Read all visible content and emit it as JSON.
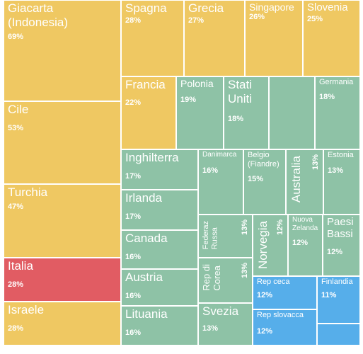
{
  "colors": {
    "yellow": "#efc862",
    "green": "#8ec2a6",
    "red": "#e15c63",
    "blue": "#56aeea"
  },
  "chart_data": {
    "type": "treemap",
    "unit": "%",
    "items": [
      {
        "label": "Giacarta\n(Indonesia)",
        "value": 69,
        "group": "yellow"
      },
      {
        "label": "Cile",
        "value": 53,
        "group": "yellow"
      },
      {
        "label": "Turchia",
        "value": 47,
        "group": "yellow"
      },
      {
        "label": "Italia",
        "value": 28,
        "group": "red"
      },
      {
        "label": "Israele",
        "value": 28,
        "group": "yellow"
      },
      {
        "label": "Spagna",
        "value": 28,
        "group": "yellow"
      },
      {
        "label": "Grecia",
        "value": 27,
        "group": "yellow"
      },
      {
        "label": "Singapore",
        "value": 26,
        "group": "yellow"
      },
      {
        "label": "Slovenia",
        "value": 25,
        "group": "yellow"
      },
      {
        "label": "Francia",
        "value": 22,
        "group": "yellow"
      },
      {
        "label": "Polonia",
        "value": 19,
        "group": "green"
      },
      {
        "label": "Stati\nUniti",
        "value": 18,
        "group": "green"
      },
      {
        "label": "",
        "value": null,
        "group": "green"
      },
      {
        "label": "Germania",
        "value": 18,
        "group": "green"
      },
      {
        "label": "Inghilterra",
        "value": 17,
        "group": "green"
      },
      {
        "label": "Danimarca",
        "value": 16,
        "group": "green"
      },
      {
        "label": "Belgio\n(Fiandre)",
        "value": 15,
        "group": "green"
      },
      {
        "label": "Australia",
        "value": 13,
        "group": "green"
      },
      {
        "label": "Estonia",
        "value": 13,
        "group": "green"
      },
      {
        "label": "Irlanda",
        "value": 17,
        "group": "green"
      },
      {
        "label": "Federaz\nRussa",
        "value": 13,
        "group": "green"
      },
      {
        "label": "Norvegia",
        "value": 12,
        "group": "green"
      },
      {
        "label": "Nuova\nZelanda",
        "value": 12,
        "group": "green"
      },
      {
        "label": "Paesi\nBassi",
        "value": 12,
        "group": "green"
      },
      {
        "label": "Canada",
        "value": 16,
        "group": "green"
      },
      {
        "label": "Rep di\nCorea",
        "value": 13,
        "group": "green"
      },
      {
        "label": "Austria",
        "value": 16,
        "group": "green"
      },
      {
        "label": "Rep ceca",
        "value": 12,
        "group": "blue"
      },
      {
        "label": "Finlandia",
        "value": 11,
        "group": "blue"
      },
      {
        "label": "Lituania",
        "value": 16,
        "group": "green"
      },
      {
        "label": "Svezia",
        "value": 13,
        "group": "green"
      },
      {
        "label": "Rep slovacca",
        "value": 12,
        "group": "blue"
      },
      {
        "label": "",
        "value": null,
        "group": "blue"
      }
    ]
  }
}
